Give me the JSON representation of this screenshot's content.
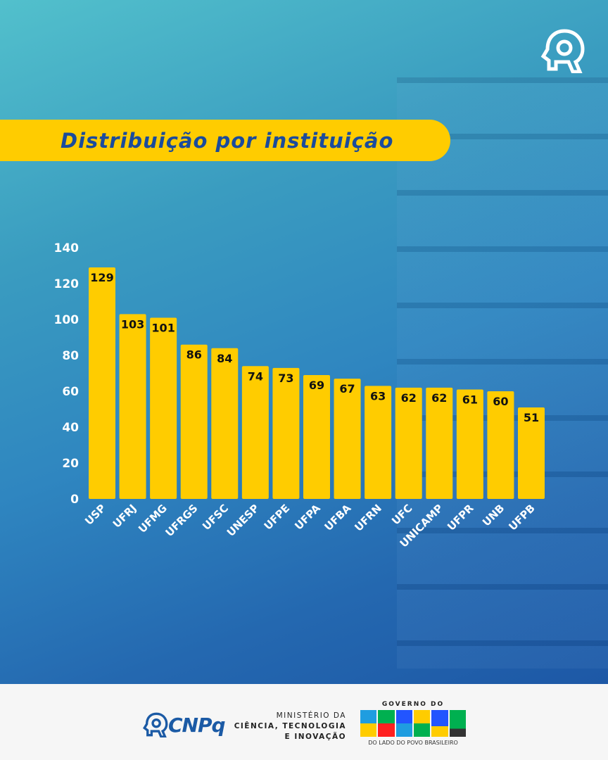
{
  "header": {
    "title": "Distribuição por instituição"
  },
  "footer": {
    "cnpq": "CNPq",
    "ministry": [
      "MINISTÉRIO DA",
      "CIÊNCIA, TECNOLOGIA",
      "E INOVAÇÃO"
    ],
    "gov_top": "GOVERNO DO",
    "gov_main": "BRASIL",
    "gov_bottom": "DO LADO DO POVO BRASILEIRO"
  },
  "colors": {
    "bar": "#ffcc00",
    "title": "#1b4b9c",
    "background": "#2f86c0"
  },
  "chart_data": {
    "type": "bar",
    "title": "Distribuição por instituição",
    "xlabel": "",
    "ylabel": "",
    "ylim": [
      0,
      140
    ],
    "yticks": [
      0,
      20,
      40,
      60,
      80,
      100,
      120,
      140
    ],
    "grid": false,
    "categories": [
      "USP",
      "UFRJ",
      "UFMG",
      "UFRGS",
      "UFSC",
      "UNESP",
      "UFPE",
      "UFPA",
      "UFBA",
      "UFRN",
      "UFC",
      "UNICAMP",
      "UFPR",
      "UNB",
      "UFPB"
    ],
    "values": [
      129,
      103,
      101,
      86,
      84,
      74,
      73,
      69,
      67,
      63,
      62,
      62,
      61,
      60,
      51
    ]
  }
}
